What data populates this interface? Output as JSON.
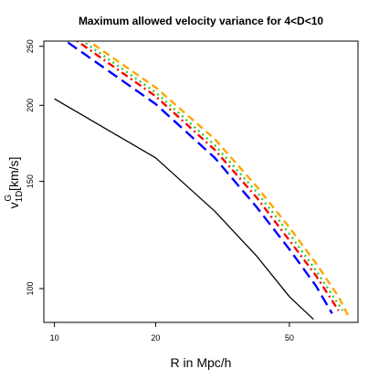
{
  "chart_data": {
    "type": "line",
    "title": "Maximum allowed velocity variance for 4<D<10",
    "xlabel": "R in Mpc/h",
    "ylabel": {
      "base": "v",
      "superscript": "G",
      "subscript": "1D",
      "unit": " [km/s]"
    },
    "xscale": "log",
    "yscale": "log",
    "xlim": [
      9.3,
      80
    ],
    "ylim": [
      88,
      255
    ],
    "x_ticks": [
      10,
      20,
      50
    ],
    "y_ticks": [
      100,
      150,
      200,
      250
    ],
    "grid": false,
    "legend": "none",
    "series": [
      {
        "color": "#000000",
        "dash": "solid",
        "points": [
          [
            10,
            205
          ],
          [
            20,
            164
          ],
          [
            30,
            134
          ],
          [
            40,
            113
          ],
          [
            50,
            97
          ],
          [
            59,
            89
          ]
        ]
      },
      {
        "color": "#0000ff",
        "dash": "long-dash",
        "points": [
          [
            10,
            263
          ],
          [
            20,
            201
          ],
          [
            30,
            164
          ],
          [
            40,
            136
          ],
          [
            50,
            116
          ],
          [
            60,
            101
          ],
          [
            67,
            91
          ]
        ]
      },
      {
        "color": "#ff0000",
        "dash": "dash-dot",
        "points": [
          [
            10,
            271
          ],
          [
            20,
            207
          ],
          [
            30,
            169
          ],
          [
            40,
            141
          ],
          [
            50,
            120
          ],
          [
            60,
            105
          ],
          [
            70,
            92
          ]
        ]
      },
      {
        "color": "#2ecc2e",
        "dash": "dotted",
        "points": [
          [
            10,
            275
          ],
          [
            20,
            210
          ],
          [
            30,
            172
          ],
          [
            40,
            144
          ],
          [
            50,
            123
          ],
          [
            60,
            107
          ],
          [
            72,
            92
          ]
        ]
      },
      {
        "color": "#ffa500",
        "dash": "dashed",
        "points": [
          [
            10,
            279
          ],
          [
            20,
            214
          ],
          [
            30,
            176
          ],
          [
            40,
            147
          ],
          [
            50,
            126
          ],
          [
            60,
            110
          ],
          [
            70,
            97
          ],
          [
            75,
            90
          ]
        ]
      }
    ]
  }
}
